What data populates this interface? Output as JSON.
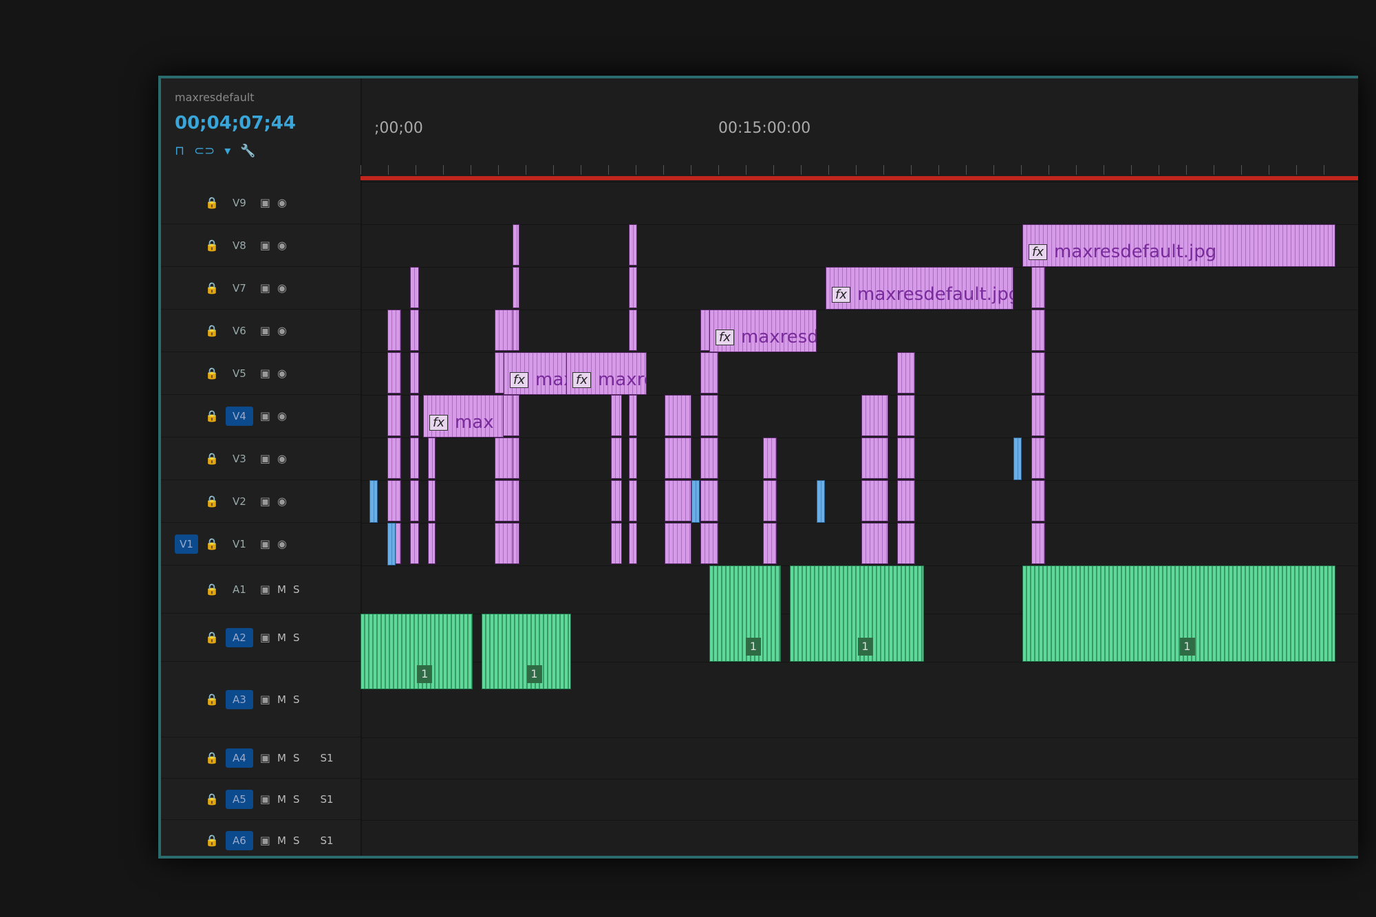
{
  "sequence": {
    "name": "maxresdefault",
    "timecode": "00;04;07;44"
  },
  "ruler": {
    "start_label": ";00;00",
    "mid_label": "00:15:00:00"
  },
  "video_tracks": [
    {
      "label": "V9",
      "target": false
    },
    {
      "label": "V8",
      "target": false
    },
    {
      "label": "V7",
      "target": false
    },
    {
      "label": "V6",
      "target": false
    },
    {
      "label": "V5",
      "target": false
    },
    {
      "label": "V4",
      "target": true
    },
    {
      "label": "V3",
      "target": false
    },
    {
      "label": "V2",
      "target": false
    },
    {
      "label": "V1",
      "target": false,
      "source": "V1"
    }
  ],
  "audio_tracks": [
    {
      "label": "A1",
      "target": false,
      "m": "M",
      "s": "S",
      "voice": ""
    },
    {
      "label": "A2",
      "target": true,
      "m": "M",
      "s": "S",
      "voice": ""
    },
    {
      "label": "A3",
      "target": true,
      "m": "M",
      "s": "S",
      "voice": ""
    },
    {
      "label": "A4",
      "target": true,
      "m": "M",
      "s": "S",
      "voice": "S1"
    },
    {
      "label": "A5",
      "target": true,
      "m": "M",
      "s": "S",
      "voice": "S1"
    },
    {
      "label": "A6",
      "target": true,
      "m": "M",
      "s": "S",
      "voice": "S1"
    }
  ],
  "video_clips": [
    {
      "label": "max",
      "fx": "fx"
    },
    {
      "label": "maxr",
      "fx": "fx"
    },
    {
      "label": "maxre",
      "fx": "fx"
    },
    {
      "label": "maxresde",
      "fx": "fx"
    },
    {
      "label": "maxresdefault.jpg",
      "fx": "fx"
    },
    {
      "label": "maxresdefault.jpg",
      "fx": "fx"
    }
  ],
  "audio_badge": "1",
  "colors": {
    "video_clip": "#d69ae8",
    "audio_clip": "#5fd99a",
    "work_area": "#c0261c",
    "target": "#0b4a8c",
    "frame": "#2a6b6e"
  }
}
